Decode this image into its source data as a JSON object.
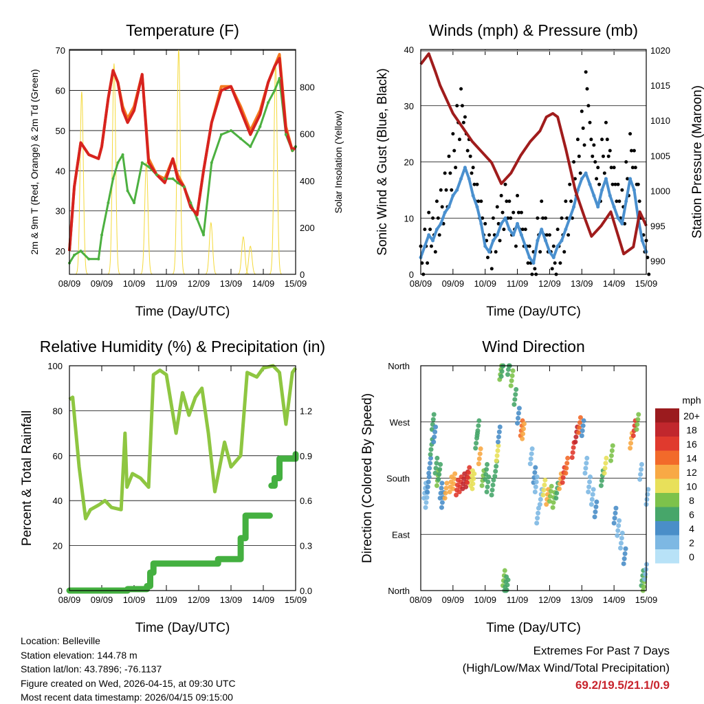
{
  "chart_data": [
    {
      "type": "line",
      "title": "Temperature (F)",
      "xlabel": "Time (Day/UTC)",
      "ylabel": "2m & 9m T (Red, Orange) & 2m Td (Green)",
      "y2label": "Solar Insolation (Yellow)",
      "xticks": [
        "08/09",
        "09/09",
        "10/09",
        "11/09",
        "12/09",
        "13/09",
        "14/09",
        "15/09"
      ],
      "xlim": [
        0,
        7
      ],
      "ylim": [
        14.2,
        70.2
      ],
      "yticks": [
        20,
        30,
        40,
        50,
        60,
        70
      ],
      "y2lim": [
        0,
        960
      ],
      "y2ticks": [
        0,
        200,
        400,
        600,
        800
      ],
      "x": [
        0,
        0.15,
        0.35,
        0.6,
        0.9,
        1.0,
        1.2,
        1.35,
        1.5,
        1.65,
        1.8,
        2.0,
        2.25,
        2.45,
        2.7,
        2.95,
        3.2,
        3.35,
        3.55,
        3.75,
        3.95,
        4.15,
        4.4,
        4.7,
        5.0,
        5.3,
        5.6,
        5.9,
        6.15,
        6.35,
        6.5,
        6.7,
        6.9,
        7
      ],
      "series": [
        {
          "name": "2m T",
          "color": "#d7231f",
          "values": [
            20,
            36,
            47,
            44,
            43,
            46,
            58,
            65,
            62,
            55,
            52,
            55,
            64,
            42,
            39,
            37,
            43,
            38,
            36,
            31,
            29,
            40,
            52,
            60,
            61,
            55,
            49,
            54,
            62,
            66,
            68,
            50,
            45,
            46
          ]
        },
        {
          "name": "9m T",
          "color": "#f47a20",
          "values": [
            20,
            36,
            47,
            44,
            43,
            46,
            58,
            65,
            62,
            56,
            53,
            56,
            64,
            43,
            39,
            38,
            43,
            39,
            36,
            31,
            29,
            40,
            52,
            61,
            61,
            56,
            50,
            55,
            62,
            66,
            69,
            51,
            45,
            46
          ]
        },
        {
          "name": "2m Td",
          "color": "#4cb040",
          "values": [
            17,
            19,
            20,
            18,
            18,
            24,
            32,
            38,
            42,
            44,
            35,
            32,
            42,
            41,
            39,
            38,
            38,
            37,
            36,
            32,
            28,
            24,
            42,
            49,
            50,
            48,
            46,
            51,
            57,
            60,
            63,
            49,
            45,
            46
          ]
        }
      ],
      "solar": {
        "color": "#f4d93a",
        "peaks": [
          [
            0.38,
            780
          ],
          [
            1.38,
            900
          ],
          [
            2.38,
            480
          ],
          [
            3.38,
            960
          ],
          [
            4.38,
            220
          ],
          [
            5.38,
            160
          ],
          [
            5.6,
            120
          ],
          [
            6.38,
            900
          ]
        ]
      }
    },
    {
      "type": "scatter",
      "title": "Winds (mph) & Pressure (mb)",
      "xlabel": "Time (Day/UTC)",
      "ylabel": "Sonic Wind & Gust (Blue, Black)",
      "y2label": "Station Pressure (Maroon)",
      "xticks": [
        "08/09",
        "09/09",
        "10/09",
        "11/09",
        "12/09",
        "13/09",
        "14/09",
        "15/09"
      ],
      "xlim": [
        0,
        7
      ],
      "ylim": [
        0,
        40
      ],
      "yticks": [
        0,
        10,
        20,
        30,
        40
      ],
      "y2lim": [
        988.1,
        1020.1
      ],
      "y2ticks": [
        990,
        995,
        1000,
        1005,
        1010,
        1015,
        1020
      ],
      "wind": {
        "color": "#4a90cf",
        "step": 0.125,
        "values": [
          3,
          5,
          7,
          6,
          8,
          9,
          11,
          12,
          14,
          15,
          17,
          19,
          17,
          14,
          12,
          9,
          5,
          4,
          6,
          7,
          9,
          10,
          8,
          7,
          9,
          7,
          5,
          3,
          2,
          6,
          8,
          6,
          4,
          3,
          5,
          6,
          8,
          10,
          12,
          15,
          17,
          18,
          16,
          14,
          12,
          15,
          17,
          14,
          12,
          10,
          9,
          13,
          17,
          15,
          10,
          6,
          4
        ]
      },
      "gust": {
        "color": "#000000",
        "step": 0.125,
        "values": [
          5,
          8,
          11,
          10,
          13,
          15,
          18,
          21,
          25,
          30,
          33,
          28,
          24,
          19,
          16,
          13,
          9,
          7,
          10,
          12,
          14,
          16,
          13,
          11,
          14,
          11,
          8,
          5,
          4,
          10,
          13,
          10,
          7,
          5,
          8,
          10,
          13,
          16,
          20,
          24,
          29,
          36,
          27,
          23,
          19,
          24,
          27,
          22,
          19,
          16,
          15,
          20,
          25,
          22,
          16,
          10,
          6
        ]
      },
      "pressure": {
        "color": "#a01c1c",
        "x": [
          0,
          0.25,
          0.45,
          0.6,
          0.8,
          1.0,
          1.3,
          1.6,
          1.9,
          2.2,
          2.5,
          2.8,
          3.1,
          3.4,
          3.7,
          3.9,
          4.1,
          4.25,
          4.5,
          4.8,
          5.1,
          5.3,
          5.6,
          5.9,
          6.1,
          6.3,
          6.6,
          6.8,
          7
        ],
        "values": [
          1018,
          1019.5,
          1017,
          1015,
          1013,
          1011,
          1009,
          1007,
          1005.5,
          1004,
          1001,
          1002.5,
          1005,
          1007,
          1008.5,
          1010.5,
          1011,
          1010.5,
          1006,
          1000,
          996,
          993.5,
          995,
          997,
          994,
          991,
          992,
          997,
          995
        ]
      }
    },
    {
      "type": "line",
      "title": "Relative Humidity (%) & Precipitation (in)",
      "xlabel": "Time (Day/UTC)",
      "ylabel": "Percent & Total Rainfall",
      "xticks": [
        "08/09",
        "09/09",
        "10/09",
        "11/09",
        "12/09",
        "13/09",
        "14/09",
        "15/09"
      ],
      "xlim": [
        0,
        7
      ],
      "ylim": [
        0,
        100
      ],
      "yticks": [
        0,
        20,
        40,
        60,
        80,
        100
      ],
      "y2lim": [
        0,
        1.5
      ],
      "y2ticks": [
        "0.0",
        "0.3",
        "0.6",
        "0.9",
        "1.2"
      ],
      "rh": {
        "color": "#8ec641",
        "x": [
          0,
          0.1,
          0.3,
          0.5,
          0.65,
          0.9,
          1.1,
          1.3,
          1.6,
          1.72,
          1.78,
          1.95,
          2.2,
          2.45,
          2.6,
          2.8,
          3.0,
          3.3,
          3.5,
          3.7,
          3.9,
          4.1,
          4.3,
          4.5,
          4.8,
          5.0,
          5.3,
          5.5,
          5.8,
          6.0,
          6.3,
          6.5,
          6.7,
          6.9,
          7
        ],
        "values": [
          85,
          86,
          55,
          32,
          36,
          38,
          40,
          37,
          36,
          70,
          46,
          52,
          50,
          46,
          96,
          98,
          96,
          70,
          88,
          78,
          86,
          90,
          70,
          44,
          66,
          55,
          60,
          97,
          95,
          99,
          100,
          97,
          74,
          97,
          99
        ]
      },
      "precip": {
        "color": "#44b040",
        "x": [
          0,
          1.7,
          1.8,
          2.4,
          2.5,
          2.6,
          4.4,
          4.6,
          5.3,
          5.45,
          6.2
        ],
        "values": [
          0,
          0,
          0.01,
          0.03,
          0.12,
          0.18,
          0.18,
          0.21,
          0.35,
          0.5,
          0.5
        ],
        "x2": [
          6.25,
          6.35,
          6.5,
          7
        ],
        "values2": [
          0.7,
          0.75,
          0.88,
          0.91
        ]
      }
    },
    {
      "type": "scatter",
      "title": "Wind Direction",
      "xlabel": "Time (Day/UTC)",
      "ylabel": "Direction (Colored By Speed)",
      "xticks": [
        "08/09",
        "09/09",
        "10/09",
        "11/09",
        "12/09",
        "13/09",
        "14/09",
        "15/09"
      ],
      "xlim": [
        0,
        7
      ],
      "ylim": [
        0,
        360
      ],
      "yticks": [
        {
          "v": 0,
          "label": "North"
        },
        {
          "v": 90,
          "label": "East"
        },
        {
          "v": 180,
          "label": "South"
        },
        {
          "v": 270,
          "label": "West"
        },
        {
          "v": 360,
          "label": "North"
        }
      ],
      "legend": {
        "title": "mph",
        "labels": [
          "20+",
          "18",
          "16",
          "14",
          "12",
          "10",
          "8",
          "6",
          "4",
          "2",
          "0"
        ],
        "colors": [
          "#9b1b1e",
          "#c1272d",
          "#e03a2e",
          "#f26a2a",
          "#f8a945",
          "#e8e05a",
          "#7dc24b",
          "#47a66a",
          "#4a8ec8",
          "#7db8e3",
          "#b8e2f7"
        ]
      },
      "points": [
        [
          0.1,
          160,
          3
        ],
        [
          0.15,
          145,
          2
        ],
        [
          0.2,
          170,
          4
        ],
        [
          0.25,
          200,
          4
        ],
        [
          0.3,
          230,
          6
        ],
        [
          0.35,
          270,
          6
        ],
        [
          0.4,
          250,
          4
        ],
        [
          0.45,
          200,
          6
        ],
        [
          0.5,
          180,
          8
        ],
        [
          0.55,
          190,
          7
        ],
        [
          0.6,
          160,
          5
        ],
        [
          0.65,
          145,
          4
        ],
        [
          0.75,
          160,
          12
        ],
        [
          0.9,
          170,
          12
        ],
        [
          1.0,
          175,
          12
        ],
        [
          1.1,
          165,
          16
        ],
        [
          1.2,
          170,
          17
        ],
        [
          1.3,
          175,
          18
        ],
        [
          1.4,
          178,
          19
        ],
        [
          1.45,
          185,
          16
        ],
        [
          1.55,
          180,
          10
        ],
        [
          1.6,
          175,
          11
        ],
        [
          1.7,
          240,
          7
        ],
        [
          1.75,
          260,
          6
        ],
        [
          1.8,
          215,
          12
        ],
        [
          1.9,
          180,
          9
        ],
        [
          2.0,
          190,
          6
        ],
        [
          2.05,
          170,
          7
        ],
        [
          2.2,
          165,
          7
        ],
        [
          2.3,
          195,
          6
        ],
        [
          2.35,
          220,
          10
        ],
        [
          2.4,
          250,
          4
        ],
        [
          2.45,
          350,
          8
        ],
        [
          2.5,
          355,
          6
        ],
        [
          2.55,
          20,
          8
        ],
        [
          2.6,
          10,
          7
        ],
        [
          2.65,
          5,
          6
        ],
        [
          2.7,
          358,
          7
        ],
        [
          2.8,
          340,
          8
        ],
        [
          2.9,
          310,
          6
        ],
        [
          3.0,
          280,
          4
        ],
        [
          3.1,
          260,
          14
        ],
        [
          3.15,
          255,
          12
        ],
        [
          3.4,
          215,
          3
        ],
        [
          3.5,
          185,
          4
        ],
        [
          3.55,
          170,
          3
        ],
        [
          3.6,
          120,
          2
        ],
        [
          3.7,
          150,
          3
        ],
        [
          3.8,
          165,
          10
        ],
        [
          3.9,
          150,
          12
        ],
        [
          4.0,
          155,
          8
        ],
        [
          4.1,
          145,
          8
        ],
        [
          4.2,
          160,
          6
        ],
        [
          4.3,
          175,
          13
        ],
        [
          4.4,
          185,
          16
        ],
        [
          4.5,
          200,
          14
        ],
        [
          4.7,
          225,
          17
        ],
        [
          4.8,
          250,
          18
        ],
        [
          4.9,
          265,
          15
        ],
        [
          5.0,
          260,
          4
        ],
        [
          5.1,
          200,
          3
        ],
        [
          5.2,
          170,
          2
        ],
        [
          5.3,
          150,
          3
        ],
        [
          5.4,
          130,
          4
        ],
        [
          5.6,
          180,
          6
        ],
        [
          5.7,
          200,
          10
        ],
        [
          5.9,
          220,
          8
        ],
        [
          6.0,
          120,
          4
        ],
        [
          6.1,
          100,
          2
        ],
        [
          6.2,
          80,
          3
        ],
        [
          6.3,
          55,
          4
        ],
        [
          6.5,
          240,
          12
        ],
        [
          6.6,
          260,
          17
        ],
        [
          6.7,
          270,
          9
        ],
        [
          6.8,
          190,
          3
        ],
        [
          6.85,
          20,
          6
        ],
        [
          6.9,
          10,
          8
        ],
        [
          6.95,
          30,
          3
        ],
        [
          7.0,
          150,
          2
        ]
      ]
    }
  ],
  "info": {
    "location": "Location: Belleville",
    "elevation": "Station elevation: 144.78 m",
    "latlon": "Station lat/lon: 43.7896; -76.1137",
    "created": "Figure created on Wed, 2026-04-15, at 09:30 UTC",
    "recent": "Most recent data timestamp: 2026/04/15 09:15:00"
  },
  "extremes": {
    "title": "Extremes For Past 7 Days",
    "subtitle": "(High/Low/Max Wind/Total Precipitation)",
    "values": "69.2/19.5/21.1/0.9"
  }
}
